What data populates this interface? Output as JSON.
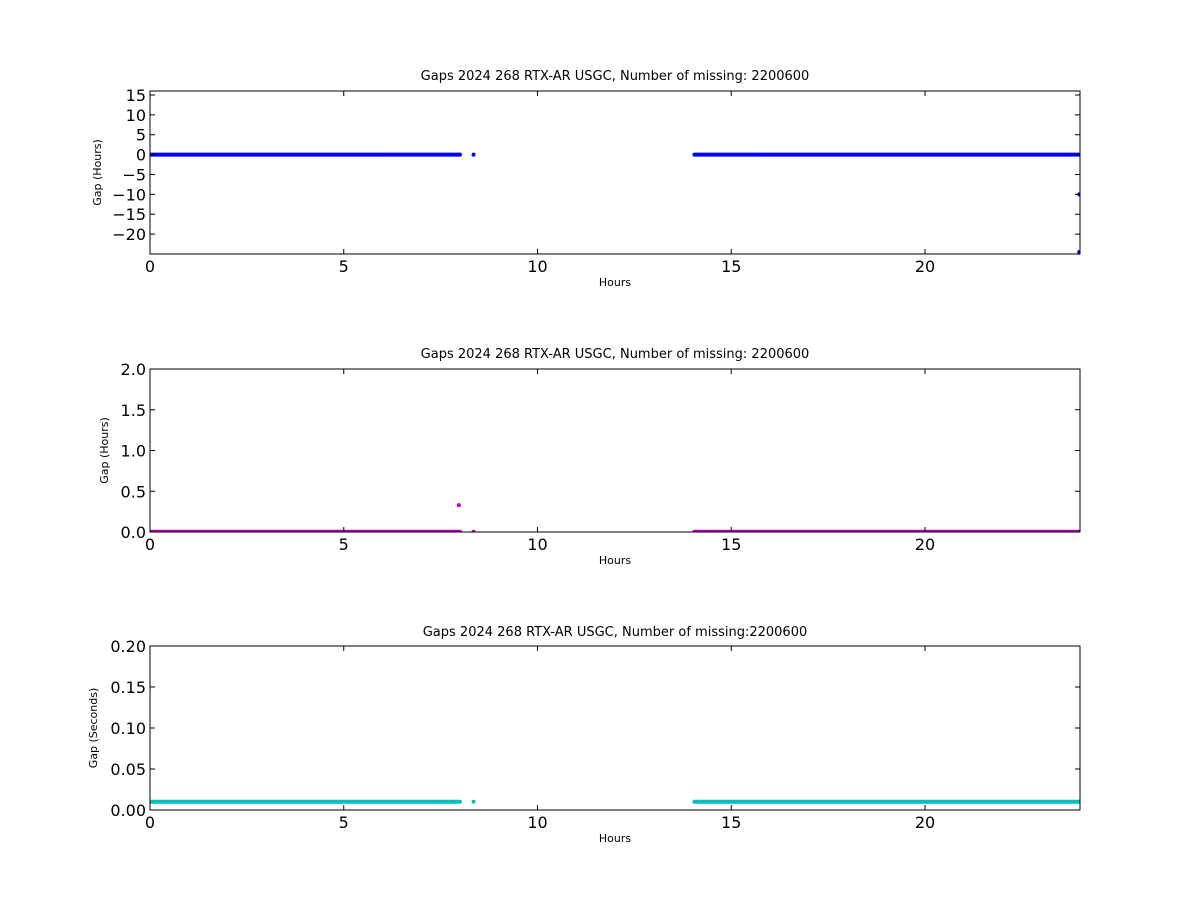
{
  "chart_data": [
    {
      "type": "scatter",
      "title": "Gaps 2024 268 RTX-AR  USGC, Number of missing: 2200600",
      "xlabel": "Hours",
      "ylabel": "Gap (Hours)",
      "xlim": [
        0,
        24
      ],
      "ylim": [
        -25,
        16
      ],
      "xticks": [
        0,
        5,
        10,
        15,
        20
      ],
      "yticks": [
        15,
        10,
        5,
        0,
        -5,
        -10,
        -15,
        -20
      ],
      "ytick_labels": [
        "15",
        "10",
        "5",
        "0",
        "−10",
        "−15",
        "−20"
      ],
      "ytick_labels_all": [
        "15",
        "10",
        "5",
        "0",
        "−5",
        "−10",
        "−15",
        "−20"
      ],
      "color": "#0000ff",
      "grid": false,
      "series": [
        {
          "segments": [
            [
              0,
              8.0,
              0
            ],
            [
              14.05,
              24,
              0
            ]
          ],
          "points": [
            [
              8.35,
              0
            ],
            [
              23.98,
              -10
            ],
            [
              23.98,
              -24.5
            ]
          ]
        }
      ]
    },
    {
      "type": "scatter",
      "title": "Gaps 2024 268 RTX-AR  USGC, Number of missing: 2200600",
      "xlabel": "Hours",
      "ylabel": "Gap (Hours)",
      "xlim": [
        0,
        24
      ],
      "ylim": [
        0,
        2.0
      ],
      "xticks": [
        0,
        5,
        10,
        15,
        20
      ],
      "yticks": [
        2.0,
        1.5,
        1.0,
        0.5,
        0.0
      ],
      "ytick_labels_all": [
        "2.0",
        "1.5",
        "1.0",
        "0.5",
        "0.0"
      ],
      "color": "#bf00bf",
      "grid": false,
      "series": [
        {
          "segments": [
            [
              0,
              8.0,
              0.003
            ],
            [
              14.05,
              24,
              0.003
            ]
          ],
          "points": [
            [
              7.97,
              0.33
            ],
            [
              8.35,
              0.003
            ]
          ]
        }
      ]
    },
    {
      "type": "scatter",
      "title": "Gaps 2024 268 RTX-AR  USGC, Number of missing:2200600",
      "xlabel": "Hours",
      "ylabel": "Gap (Seconds)",
      "xlim": [
        0,
        24
      ],
      "ylim": [
        0,
        0.2
      ],
      "xticks": [
        0,
        5,
        10,
        15,
        20
      ],
      "yticks": [
        0.2,
        0.15,
        0.1,
        0.05,
        0.0
      ],
      "ytick_labels_all": [
        "0.20",
        "0.15",
        "0.10",
        "0.05",
        "0.00"
      ],
      "color": "#00bfbf",
      "grid": false,
      "series": [
        {
          "segments": [
            [
              0,
              8.0,
              0.01
            ],
            [
              14.05,
              24,
              0.01
            ]
          ],
          "points": [
            [
              8.35,
              0.01
            ]
          ]
        }
      ]
    }
  ]
}
